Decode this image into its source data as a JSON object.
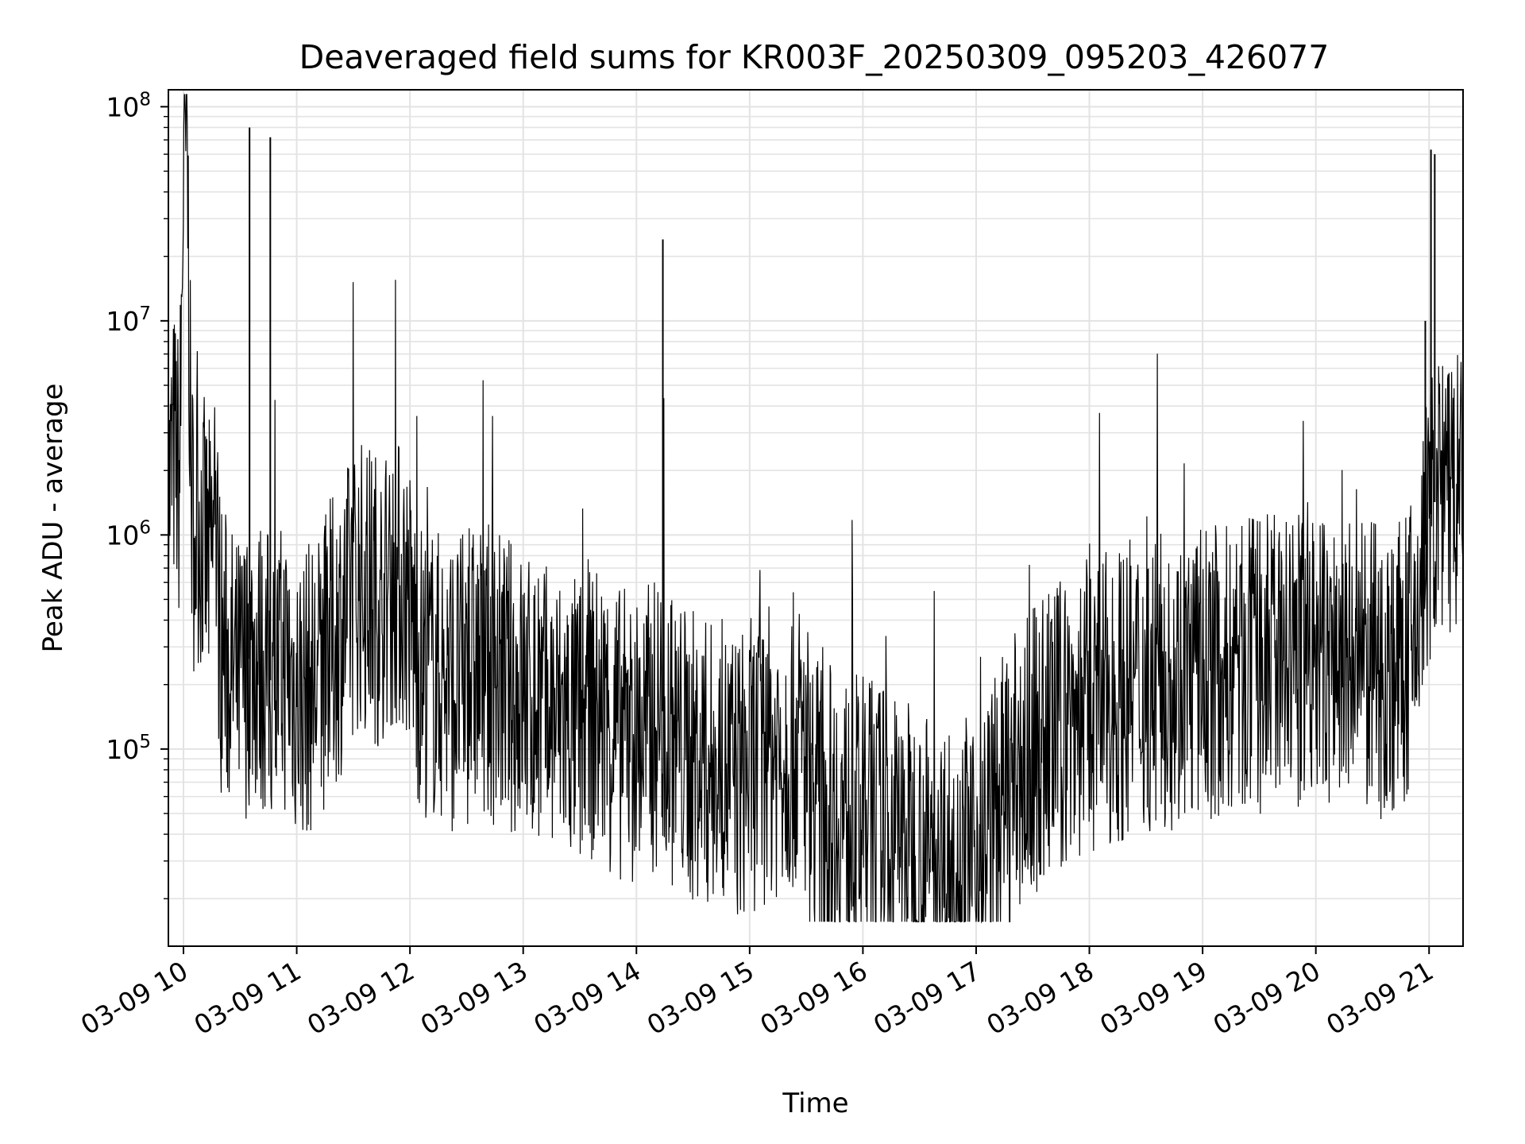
{
  "chart_data": {
    "type": "line",
    "title": "Deaveraged field sums for KR003F_20250309_095203_426077",
    "xlabel": "Time",
    "ylabel": "Peak ADU - average",
    "yscale": "log",
    "ylim": [
      12000,
      120000000
    ],
    "xlim": [
      "2025-03-09 09:52",
      "2025-03-09 21:18"
    ],
    "x_ticks": [
      "03-09 10",
      "03-09 11",
      "03-09 12",
      "03-09 13",
      "03-09 14",
      "03-09 15",
      "03-09 16",
      "03-09 17",
      "03-09 18",
      "03-09 19",
      "03-09 20",
      "03-09 21"
    ],
    "y_ticks": [
      {
        "base": "10",
        "exp": "5",
        "value": 100000
      },
      {
        "base": "10",
        "exp": "6",
        "value": 1000000
      },
      {
        "base": "10",
        "exp": "7",
        "value": 10000000
      },
      {
        "base": "10",
        "exp": "8",
        "value": 100000000
      }
    ],
    "grid": true,
    "line_color": "#000000",
    "series": [
      {
        "x": [
          "2025-03-09 09:52",
          "2025-03-09 09:55",
          "2025-03-09 09:58",
          "2025-03-09 10:00",
          "2025-03-09 10:02",
          "2025-03-09 10:04",
          "2025-03-09 10:06",
          "2025-03-09 10:08",
          "2025-03-09 10:11",
          "2025-03-09 10:14",
          "2025-03-09 10:17",
          "2025-03-09 10:20",
          "2025-03-09 10:24",
          "2025-03-09 10:28",
          "2025-03-09 10:32",
          "2025-03-09 10:36",
          "2025-03-09 10:40",
          "2025-03-09 10:44",
          "2025-03-09 10:47",
          "2025-03-09 10:50",
          "2025-03-09 10:55",
          "2025-03-09 11:00",
          "2025-03-09 11:10",
          "2025-03-09 11:18",
          "2025-03-09 11:25",
          "2025-03-09 11:32",
          "2025-03-09 11:38",
          "2025-03-09 11:45",
          "2025-03-09 11:52",
          "2025-03-09 11:58",
          "2025-03-09 12:05",
          "2025-03-09 12:15",
          "2025-03-09 12:25",
          "2025-03-09 12:35",
          "2025-03-09 12:45",
          "2025-03-09 12:52",
          "2025-03-09 13:00",
          "2025-03-09 13:10",
          "2025-03-09 13:20",
          "2025-03-09 13:30",
          "2025-03-09 13:40",
          "2025-03-09 13:50",
          "2025-03-09 14:00",
          "2025-03-09 14:10",
          "2025-03-09 14:14",
          "2025-03-09 14:18",
          "2025-03-09 14:25",
          "2025-03-09 14:35",
          "2025-03-09 14:45",
          "2025-03-09 14:55",
          "2025-03-09 15:05",
          "2025-03-09 15:15",
          "2025-03-09 15:25",
          "2025-03-09 15:30",
          "2025-03-09 15:35",
          "2025-03-09 15:45",
          "2025-03-09 15:55",
          "2025-03-09 16:05",
          "2025-03-09 16:15",
          "2025-03-09 16:25",
          "2025-03-09 16:35",
          "2025-03-09 16:45",
          "2025-03-09 16:55",
          "2025-03-09 17:05",
          "2025-03-09 17:15",
          "2025-03-09 17:25",
          "2025-03-09 17:35",
          "2025-03-09 17:45",
          "2025-03-09 17:55",
          "2025-03-09 18:05",
          "2025-03-09 18:15",
          "2025-03-09 18:25",
          "2025-03-09 18:35",
          "2025-03-09 18:45",
          "2025-03-09 18:55",
          "2025-03-09 19:05",
          "2025-03-09 19:15",
          "2025-03-09 19:25",
          "2025-03-09 19:35",
          "2025-03-09 19:45",
          "2025-03-09 19:55",
          "2025-03-09 20:05",
          "2025-03-09 20:15",
          "2025-03-09 20:25",
          "2025-03-09 20:35",
          "2025-03-09 20:45",
          "2025-03-09 20:52",
          "2025-03-09 20:58",
          "2025-03-09 21:02",
          "2025-03-09 21:06",
          "2025-03-09 21:10",
          "2025-03-09 21:14",
          "2025-03-09 21:18"
        ],
        "y": [
          1500000,
          2500000,
          1800000,
          55000000,
          65000000,
          1500000,
          1000000,
          1200000,
          900000,
          700000,
          1000000,
          300000,
          250000,
          200000,
          220000,
          280000,
          250000,
          230000,
          200000,
          220000,
          250000,
          180000,
          200000,
          300000,
          400000,
          600000,
          550000,
          500000,
          600000,
          550000,
          250000,
          220000,
          200000,
          230000,
          220000,
          200000,
          180000,
          150000,
          140000,
          130000,
          150000,
          120000,
          110000,
          130000,
          150000,
          110000,
          100000,
          85000,
          80000,
          75000,
          90000,
          100000,
          110000,
          90000,
          60000,
          50000,
          45000,
          45000,
          40000,
          35000,
          30000,
          28000,
          30000,
          35000,
          60000,
          80000,
          110000,
          130000,
          150000,
          160000,
          180000,
          200000,
          200000,
          210000,
          220000,
          230000,
          230000,
          240000,
          250000,
          260000,
          260000,
          250000,
          240000,
          240000,
          230000,
          240000,
          300000,
          900000,
          1400000,
          1500000,
          1300000,
          1600000,
          1300000
        ],
        "spikes": [
          {
            "x": "2025-03-09 10:35",
            "y": 80000000
          },
          {
            "x": "2025-03-09 10:46",
            "y": 72000000
          },
          {
            "x": "2025-03-09 14:14",
            "y": 24000000
          },
          {
            "x": "2025-03-09 21:01",
            "y": 63000000
          },
          {
            "x": "2025-03-09 21:03",
            "y": 60000000
          },
          {
            "x": "2025-03-09 20:58",
            "y": 10000000
          }
        ]
      }
    ]
  }
}
